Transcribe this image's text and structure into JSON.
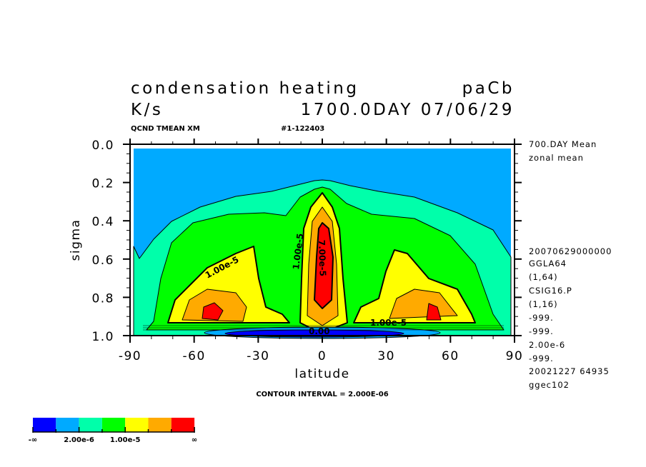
{
  "chart_data": {
    "type": "contour",
    "title": "condensation heating",
    "title_right": "paCb",
    "units": "K/s",
    "time_label": "1700.0DAY 07/06/29",
    "variable_label": "QCND TMEAN XM",
    "run_label": "#1-122403",
    "xlabel": "latitude",
    "ylabel": "sigma",
    "xlim": [
      -90,
      90
    ],
    "ylim": [
      1.0,
      0.0
    ],
    "y_inverted": true,
    "xticks": [
      "-90",
      "-60",
      "-30",
      "0",
      "30",
      "60",
      "90"
    ],
    "yticks": [
      "0.0",
      "0.2",
      "0.4",
      "0.6",
      "0.8",
      "1.0"
    ],
    "contour_interval_text": "CONTOUR INTERVAL = 2.000E-06",
    "contour_labels": [
      "1.00e-5",
      "1.00e-5",
      "7.00e-5",
      "1.00e-5",
      "0.00"
    ],
    "info_lines": [
      "700.DAY Mean",
      "zonal mean",
      "20070629000000",
      "GGLA64",
      "(1,64)",
      "CSIG16.P",
      "(1,16)",
      "-999.",
      "-999.",
      "2.00e-6",
      "-999.",
      "20021227  64935",
      "ggec102"
    ],
    "colorbar": {
      "colors": [
        "#0000ff",
        "#00aaff",
        "#00ffaa",
        "#00ff00",
        "#ffff00",
        "#ffaa00",
        "#ff0000"
      ],
      "labels": [
        "-∞",
        "2.00e-6",
        "1.00e-5",
        "∞"
      ]
    }
  }
}
